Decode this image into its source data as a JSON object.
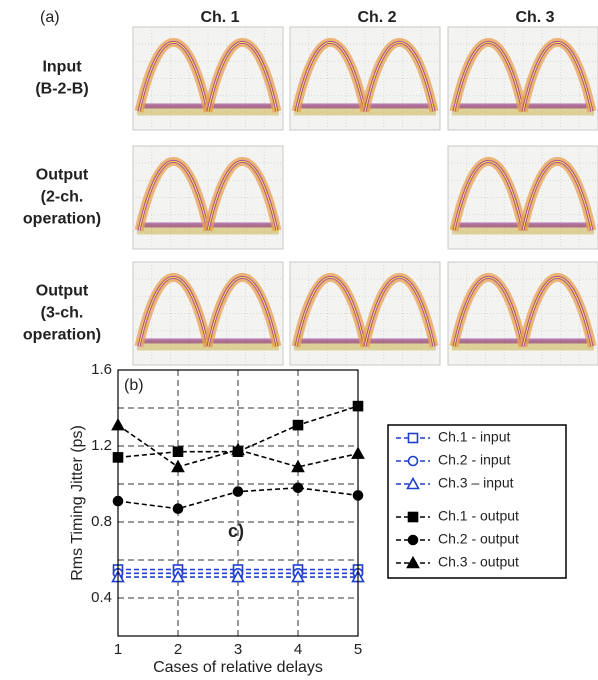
{
  "panel_a": {
    "label": "(a)",
    "columns": [
      "Ch. 1",
      "Ch. 2",
      "Ch. 3"
    ],
    "rows": [
      [
        "Input",
        "(B-2-B)"
      ],
      [
        "Output",
        "(2-ch.",
        "operation)"
      ],
      [
        "Output",
        "(3-ch.",
        "operation)"
      ]
    ]
  },
  "chart_data": {
    "type": "line",
    "panel_label": "(b)",
    "annotation": "c)",
    "x_label": "Cases of relative delays",
    "y_label": "Rms Timing Jitter (ps)",
    "x": [
      1,
      2,
      3,
      4,
      5
    ],
    "xlim": [
      1,
      5
    ],
    "xticks": [
      1,
      2,
      3,
      4,
      5
    ],
    "ylim": [
      0.2,
      1.6
    ],
    "yticks": [
      0.4,
      0.8,
      1.2,
      1.6
    ],
    "yminor": [
      0.6,
      1.0,
      1.4
    ],
    "grid": true,
    "legend": "right",
    "series": [
      {
        "name": "Ch.1 - input",
        "color": "#1f3fd0",
        "marker": "square",
        "filled": false,
        "values": [
          0.55,
          0.55,
          0.55,
          0.55,
          0.55
        ]
      },
      {
        "name": "Ch.2 - input",
        "color": "#1f3fd0",
        "marker": "circle",
        "filled": false,
        "values": [
          0.53,
          0.53,
          0.53,
          0.53,
          0.53
        ]
      },
      {
        "name": "Ch.3 – input",
        "color": "#1f3fd0",
        "marker": "triangle",
        "filled": false,
        "values": [
          0.51,
          0.51,
          0.51,
          0.51,
          0.51
        ]
      },
      {
        "name": "Ch.1 - output",
        "color": "#000000",
        "marker": "square",
        "filled": true,
        "values": [
          1.14,
          1.17,
          1.17,
          1.31,
          1.41
        ]
      },
      {
        "name": "Ch.2 - output",
        "color": "#000000",
        "marker": "circle",
        "filled": true,
        "values": [
          0.91,
          0.87,
          0.96,
          0.98,
          0.94
        ]
      },
      {
        "name": "Ch.3 - output",
        "color": "#000000",
        "marker": "triangle",
        "filled": true,
        "values": [
          1.31,
          1.09,
          1.18,
          1.09,
          1.16
        ]
      }
    ]
  }
}
